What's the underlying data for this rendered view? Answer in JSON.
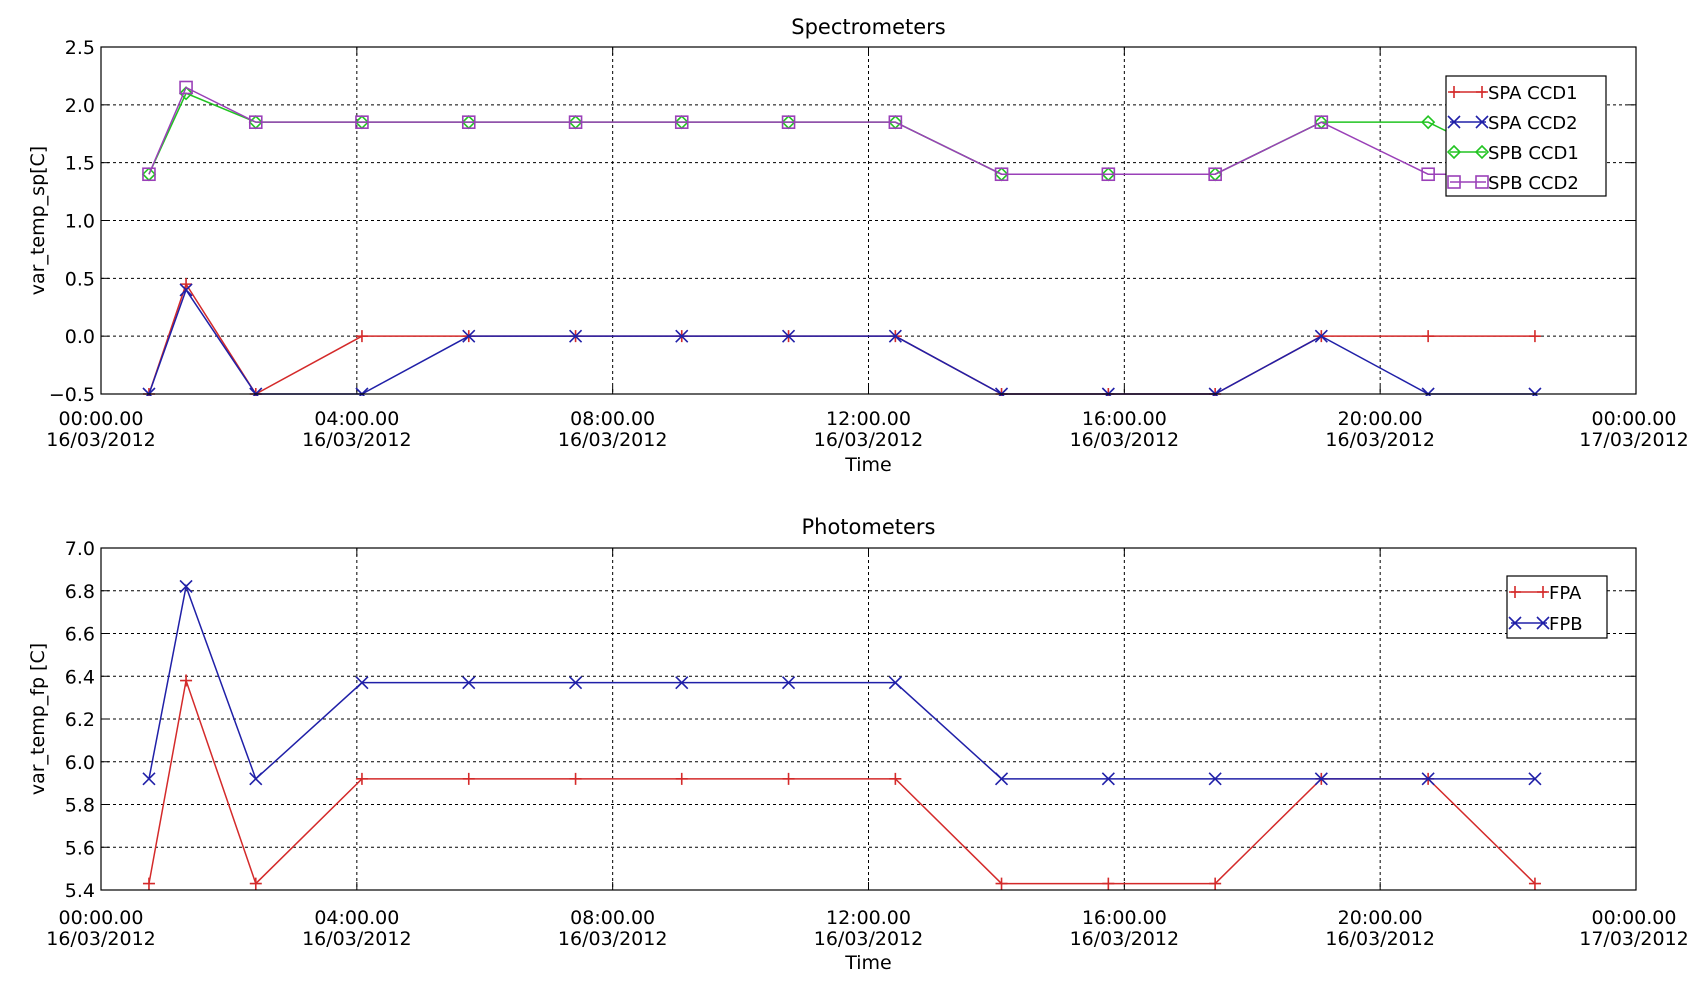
{
  "chart_data": [
    {
      "type": "line",
      "title": "Spectrometers",
      "xlabel": "Time",
      "ylabel": "var_temp_sp[C]",
      "ylim": [
        -0.5,
        2.5
      ],
      "yticks": [
        -0.5,
        0.0,
        0.5,
        1.0,
        1.5,
        2.0,
        2.5
      ],
      "ytick_labels": [
        "−0.5",
        "0.0",
        "0.5",
        "1.0",
        "1.5",
        "2.0",
        "2.5"
      ],
      "xlim_hours": [
        0,
        24
      ],
      "xticks_hours": [
        0,
        4,
        8,
        12,
        16,
        20,
        24
      ],
      "xtick_labels": [
        [
          "00:00.00",
          "16/03/2012"
        ],
        [
          "04:00.00",
          "16/03/2012"
        ],
        [
          "08:00.00",
          "16/03/2012"
        ],
        [
          "12:00.00",
          "16/03/2012"
        ],
        [
          "16:00.00",
          "16/03/2012"
        ],
        [
          "20:00.00",
          "16/03/2012"
        ],
        [
          "00:00.00",
          "17/03/2012"
        ]
      ],
      "grid": true,
      "legend_position": "top-right",
      "x_hours": [
        0.75,
        1.33,
        2.42,
        4.08,
        5.75,
        7.42,
        9.08,
        10.75,
        12.42,
        14.08,
        15.75,
        17.42,
        19.08,
        20.75,
        22.42
      ],
      "series": [
        {
          "name": "SPA CCD1",
          "color": "#d42a2a",
          "marker": "plus",
          "values": [
            -0.5,
            0.45,
            -0.5,
            0.0,
            0.0,
            0.0,
            0.0,
            0.0,
            0.0,
            -0.5,
            -0.5,
            -0.5,
            0.0,
            0.0,
            0.0
          ]
        },
        {
          "name": "SPA CCD2",
          "color": "#2020a8",
          "marker": "x",
          "values": [
            -0.5,
            0.4,
            -0.5,
            -0.5,
            0.0,
            0.0,
            0.0,
            0.0,
            0.0,
            -0.5,
            -0.5,
            -0.5,
            0.0,
            -0.5,
            -0.5
          ]
        },
        {
          "name": "SPB CCD1",
          "color": "#22c422",
          "marker": "diamond",
          "values": [
            1.4,
            2.1,
            1.85,
            1.85,
            1.85,
            1.85,
            1.85,
            1.85,
            1.85,
            1.4,
            1.4,
            1.4,
            1.85,
            1.85,
            1.4
          ]
        },
        {
          "name": "SPB CCD2",
          "color": "#9a40b8",
          "marker": "square",
          "values": [
            1.4,
            2.15,
            1.85,
            1.85,
            1.85,
            1.85,
            1.85,
            1.85,
            1.85,
            1.4,
            1.4,
            1.4,
            1.85,
            1.4,
            1.4
          ]
        }
      ]
    },
    {
      "type": "line",
      "title": "Photometers",
      "xlabel": "Time",
      "ylabel": "var_temp_fp [C]",
      "ylim": [
        5.4,
        7.0
      ],
      "yticks": [
        5.4,
        5.6,
        5.8,
        6.0,
        6.2,
        6.4,
        6.6,
        6.8,
        7.0
      ],
      "ytick_labels": [
        "5.4",
        "5.6",
        "5.8",
        "6.0",
        "6.2",
        "6.4",
        "6.6",
        "6.8",
        "7.0"
      ],
      "xlim_hours": [
        0,
        24
      ],
      "xticks_hours": [
        0,
        4,
        8,
        12,
        16,
        20,
        24
      ],
      "xtick_labels": [
        [
          "00:00.00",
          "16/03/2012"
        ],
        [
          "04:00.00",
          "16/03/2012"
        ],
        [
          "08:00.00",
          "16/03/2012"
        ],
        [
          "12:00.00",
          "16/03/2012"
        ],
        [
          "16:00.00",
          "16/03/2012"
        ],
        [
          "20:00.00",
          "16/03/2012"
        ],
        [
          "00:00.00",
          "17/03/2012"
        ]
      ],
      "grid": true,
      "legend_position": "top-right",
      "x_hours": [
        0.75,
        1.33,
        2.42,
        4.08,
        5.75,
        7.42,
        9.08,
        10.75,
        12.42,
        14.08,
        15.75,
        17.42,
        19.08,
        20.75,
        22.42
      ],
      "series": [
        {
          "name": "FPA",
          "color": "#d42a2a",
          "marker": "plus",
          "values": [
            5.43,
            6.38,
            5.43,
            5.92,
            5.92,
            5.92,
            5.92,
            5.92,
            5.92,
            5.43,
            5.43,
            5.43,
            5.92,
            5.92,
            5.43
          ]
        },
        {
          "name": "FPB",
          "color": "#2020a8",
          "marker": "x",
          "values": [
            5.92,
            6.82,
            5.92,
            6.37,
            6.37,
            6.37,
            6.37,
            6.37,
            6.37,
            5.92,
            5.92,
            5.92,
            5.92,
            5.92,
            5.92
          ]
        }
      ]
    }
  ]
}
